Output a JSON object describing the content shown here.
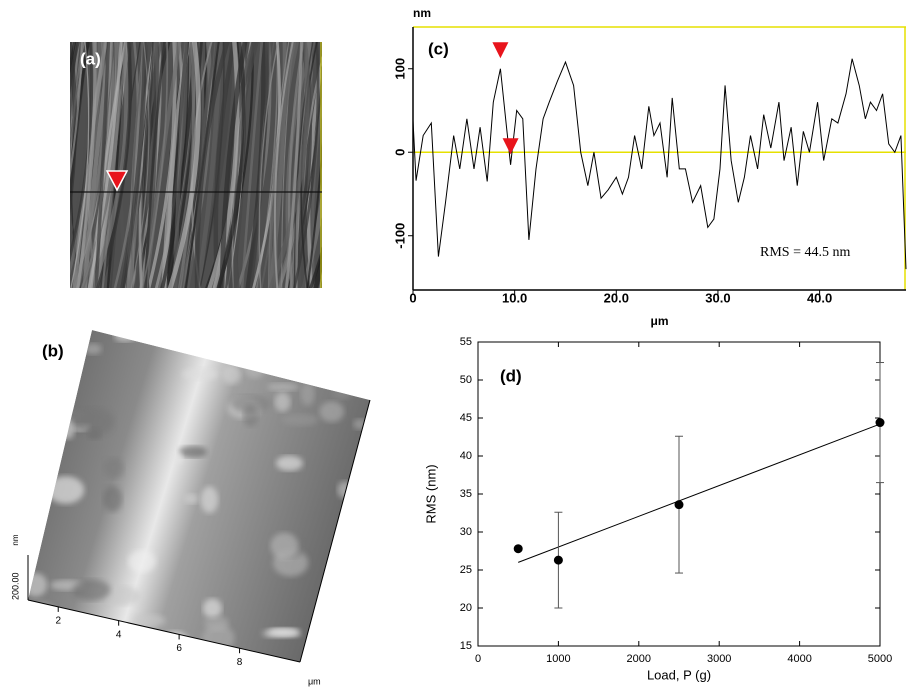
{
  "panels": {
    "a": {
      "label": "(a)"
    },
    "b": {
      "label": "(b)",
      "xticks": [
        2,
        4,
        6,
        8
      ],
      "xunit": "μm",
      "zscale": {
        "value": 200,
        "label": "200.00"
      },
      "zunit": "nm"
    }
  },
  "chart_data": [
    {
      "type": "line",
      "label": "(c)",
      "y_unit": "nm",
      "x_unit": "μm",
      "annotation": "RMS = 44.5 nm",
      "color": "#000000",
      "reference_color": "#e6e000",
      "xlim": [
        0,
        48.5
      ],
      "ylim": [
        -165,
        150
      ],
      "xticks": [
        0,
        {
          "value": 10,
          "label": "10.0"
        },
        {
          "value": 20,
          "label": "20.0"
        },
        {
          "value": 30,
          "label": "30.0"
        },
        {
          "value": 40,
          "label": "40.0"
        }
      ],
      "yticks": [
        -100,
        0,
        100
      ],
      "x": [
        0,
        0.3,
        1,
        1.8,
        2.5,
        3.2,
        4,
        4.6,
        5.3,
        6,
        6.6,
        7.3,
        7.9,
        8.6,
        9.2,
        9.6,
        10.2,
        10.8,
        11.4,
        12.1,
        12.8,
        13.4,
        14.2,
        15,
        15.8,
        16.5,
        17.2,
        17.8,
        18.5,
        19.2,
        20,
        20.6,
        21.2,
        21.8,
        22.5,
        23.2,
        23.7,
        24.3,
        25,
        25.5,
        26.2,
        26.8,
        27.5,
        28.3,
        29,
        29.6,
        30.2,
        30.7,
        31.3,
        32,
        32.6,
        33.2,
        33.9,
        34.5,
        35.2,
        36,
        36.5,
        37.2,
        37.8,
        38.4,
        39,
        39.8,
        40.4,
        41.2,
        41.8,
        42.6,
        43.2,
        43.9,
        44.5,
        45,
        45.6,
        46.2,
        46.8,
        47.4,
        48,
        48.5
      ],
      "values": [
        38,
        -34,
        20,
        35,
        -125,
        -60,
        20,
        -20,
        40,
        -20,
        30,
        -35,
        60,
        100,
        30,
        -15,
        50,
        40,
        -105,
        -20,
        40,
        60,
        85,
        108,
        80,
        0,
        -40,
        0,
        -55,
        -45,
        -30,
        -50,
        -30,
        20,
        -20,
        55,
        20,
        35,
        -30,
        65,
        -20,
        -20,
        -60,
        -40,
        -90,
        -80,
        -20,
        80,
        -10,
        -60,
        -30,
        20,
        -20,
        45,
        5,
        60,
        -10,
        30,
        -40,
        25,
        0,
        60,
        -10,
        40,
        35,
        70,
        112,
        80,
        40,
        60,
        50,
        70,
        10,
        0,
        20,
        -140
      ],
      "markers": {
        "color": "#e8141c",
        "x": [
          8.6,
          9.6
        ],
        "y": [
          115,
          0
        ]
      }
    },
    {
      "type": "scatter",
      "label": "(d)",
      "x_label": "Load, P (g)",
      "y_label": "RMS (nm)",
      "color": "#000000",
      "xlim": [
        0,
        5000
      ],
      "ylim": [
        15,
        55
      ],
      "xticks": [
        0,
        1000,
        2000,
        3000,
        4000,
        5000
      ],
      "yticks": [
        15,
        20,
        25,
        30,
        35,
        40,
        45,
        50,
        55
      ],
      "x": [
        500,
        1000,
        2500,
        5000
      ],
      "values": [
        27.8,
        26.3,
        33.6,
        44.4
      ],
      "errors": [
        null,
        6.3,
        9,
        7.9
      ],
      "fit": {
        "x": [
          500,
          5000
        ],
        "y": [
          26,
          44.2
        ]
      }
    }
  ]
}
